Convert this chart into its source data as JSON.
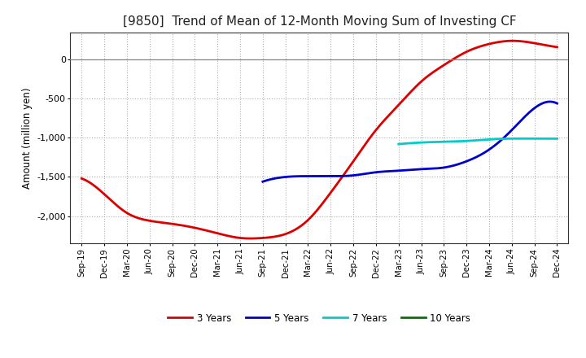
{
  "title": "[9850]  Trend of Mean of 12-Month Moving Sum of Investing CF",
  "ylabel": "Amount (million yen)",
  "background_color": "#ffffff",
  "plot_bg_color": "#ffffff",
  "grid_color": "#b0b0b0",
  "xtick_labels": [
    "Sep-19",
    "Dec-19",
    "Mar-20",
    "Jun-20",
    "Sep-20",
    "Dec-20",
    "Mar-21",
    "Jun-21",
    "Sep-21",
    "Dec-21",
    "Mar-22",
    "Jun-22",
    "Sep-22",
    "Dec-22",
    "Mar-23",
    "Jun-23",
    "Sep-23",
    "Dec-23",
    "Mar-24",
    "Jun-24",
    "Sep-24",
    "Dec-24"
  ],
  "ylim": [
    -2350,
    350
  ],
  "yticks": [
    -2000,
    -1500,
    -1000,
    -500,
    0
  ],
  "series": {
    "3 Years": {
      "color": "#dd0000",
      "linewidth": 2.0,
      "data_x": [
        0,
        1,
        2,
        3,
        4,
        5,
        6,
        7,
        8,
        9,
        10,
        11,
        12,
        13,
        14,
        15,
        16,
        17,
        18,
        19,
        20,
        21
      ],
      "data_y": [
        -1520,
        -1720,
        -1960,
        -2060,
        -2100,
        -2150,
        -2220,
        -2280,
        -2280,
        -2230,
        -2050,
        -1700,
        -1300,
        -900,
        -580,
        -280,
        -70,
        100,
        200,
        240,
        210,
        160
      ]
    },
    "5 Years": {
      "color": "#0000cc",
      "linewidth": 2.0,
      "data_x": [
        8,
        9,
        10,
        11,
        12,
        13,
        14,
        15,
        16,
        17,
        18,
        19,
        20,
        21
      ],
      "data_y": [
        -1560,
        -1500,
        -1490,
        -1490,
        -1480,
        -1440,
        -1420,
        -1400,
        -1380,
        -1300,
        -1150,
        -900,
        -620,
        -560
      ]
    },
    "7 Years": {
      "color": "#00cccc",
      "linewidth": 2.0,
      "data_x": [
        14,
        15,
        16,
        17,
        18,
        19,
        20,
        21
      ],
      "data_y": [
        -1080,
        -1060,
        -1050,
        -1040,
        -1020,
        -1010,
        -1010,
        -1010
      ]
    },
    "10 Years": {
      "color": "#007700",
      "linewidth": 2.0,
      "data_x": [],
      "data_y": []
    }
  },
  "legend": {
    "entries": [
      "3 Years",
      "5 Years",
      "7 Years",
      "10 Years"
    ],
    "colors": [
      "#dd0000",
      "#0000cc",
      "#00cccc",
      "#007700"
    ]
  }
}
